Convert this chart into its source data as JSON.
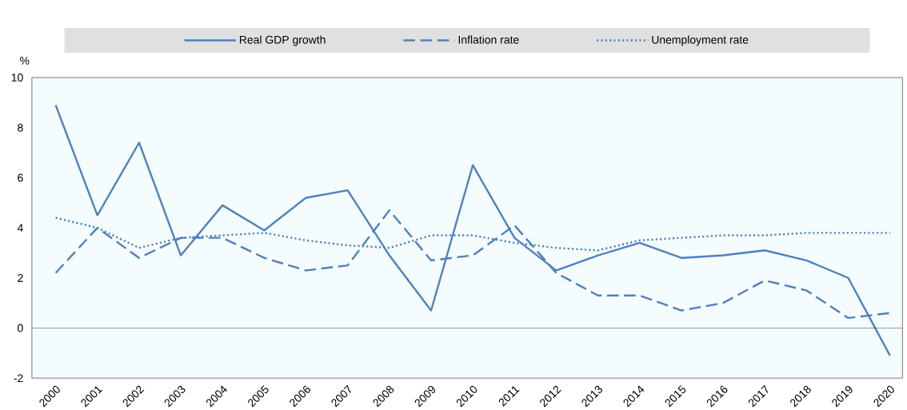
{
  "chart_data": {
    "type": "line",
    "ylabel": "%",
    "categories": [
      "2000",
      "2001",
      "2002",
      "2003",
      "2004",
      "2005",
      "2006",
      "2007",
      "2008",
      "2009",
      "2010",
      "2011",
      "2012",
      "2013",
      "2014",
      "2015",
      "2016",
      "2017",
      "2018",
      "2019",
      "2020"
    ],
    "series": [
      {
        "name": "Real GDP growth",
        "color": "#4f81bd",
        "line_style": "solid",
        "values": [
          8.9,
          4.5,
          7.4,
          2.9,
          4.9,
          3.9,
          5.2,
          5.5,
          2.9,
          0.7,
          6.5,
          3.6,
          2.3,
          2.9,
          3.4,
          2.8,
          2.9,
          3.1,
          2.7,
          2.0,
          -1.1
        ]
      },
      {
        "name": "Inflation rate",
        "color": "#4f81bd",
        "line_style": "dashed",
        "values": [
          2.2,
          4.0,
          2.8,
          3.6,
          3.6,
          2.8,
          2.3,
          2.5,
          4.7,
          2.7,
          2.9,
          4.1,
          2.2,
          1.3,
          1.3,
          0.7,
          1.0,
          1.9,
          1.5,
          0.4,
          0.6
        ]
      },
      {
        "name": "Unemployment rate",
        "color": "#4f81bd",
        "line_style": "dotted",
        "values": [
          4.4,
          4.0,
          3.2,
          3.6,
          3.7,
          3.8,
          3.5,
          3.3,
          3.2,
          3.7,
          3.7,
          3.4,
          3.2,
          3.1,
          3.5,
          3.6,
          3.7,
          3.7,
          3.8,
          3.8,
          3.8
        ]
      }
    ],
    "ylim": [
      -2,
      10
    ],
    "yticks": [
      -2,
      0,
      2,
      4,
      6,
      8,
      10
    ],
    "ref_lines": [
      {
        "axis": "y",
        "value": 0
      }
    ],
    "grid": false,
    "legend": "top",
    "marker": "none"
  }
}
